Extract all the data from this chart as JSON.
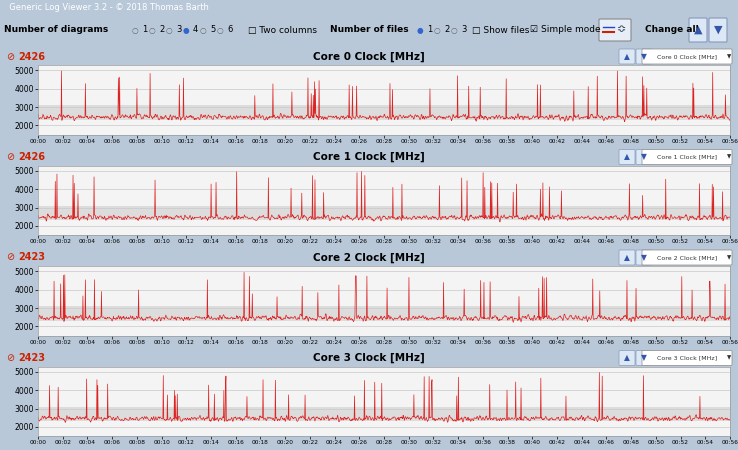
{
  "title_bar": "Generic Log Viewer 3.2 - © 2018 Thomas Barth",
  "toolbar_bg": "#dce6f0",
  "window_bg": "#b8c8d8",
  "chart_area_bg": "#e8eef4",
  "chart_bg": "#f4f4f4",
  "chart_band_bg": "#dcdcdc",
  "line_color": "#dd2222",
  "grid_color": "#c8c8c8",
  "cores": [
    "Core 0 Clock [MHz]",
    "Core 1 Clock [MHz]",
    "Core 2 Clock [MHz]",
    "Core 3 Clock [MHz]"
  ],
  "core_values": [
    "2426",
    "2426",
    "2423",
    "2423"
  ],
  "ylim": [
    1500,
    5300
  ],
  "yticks": [
    2000,
    3000,
    4000,
    5000
  ],
  "duration_minutes": 56,
  "text_color": "#000000",
  "label_color_red": "#cc2200",
  "border_color": "#999999",
  "figsize": [
    7.38,
    4.5
  ],
  "dpi": 100
}
